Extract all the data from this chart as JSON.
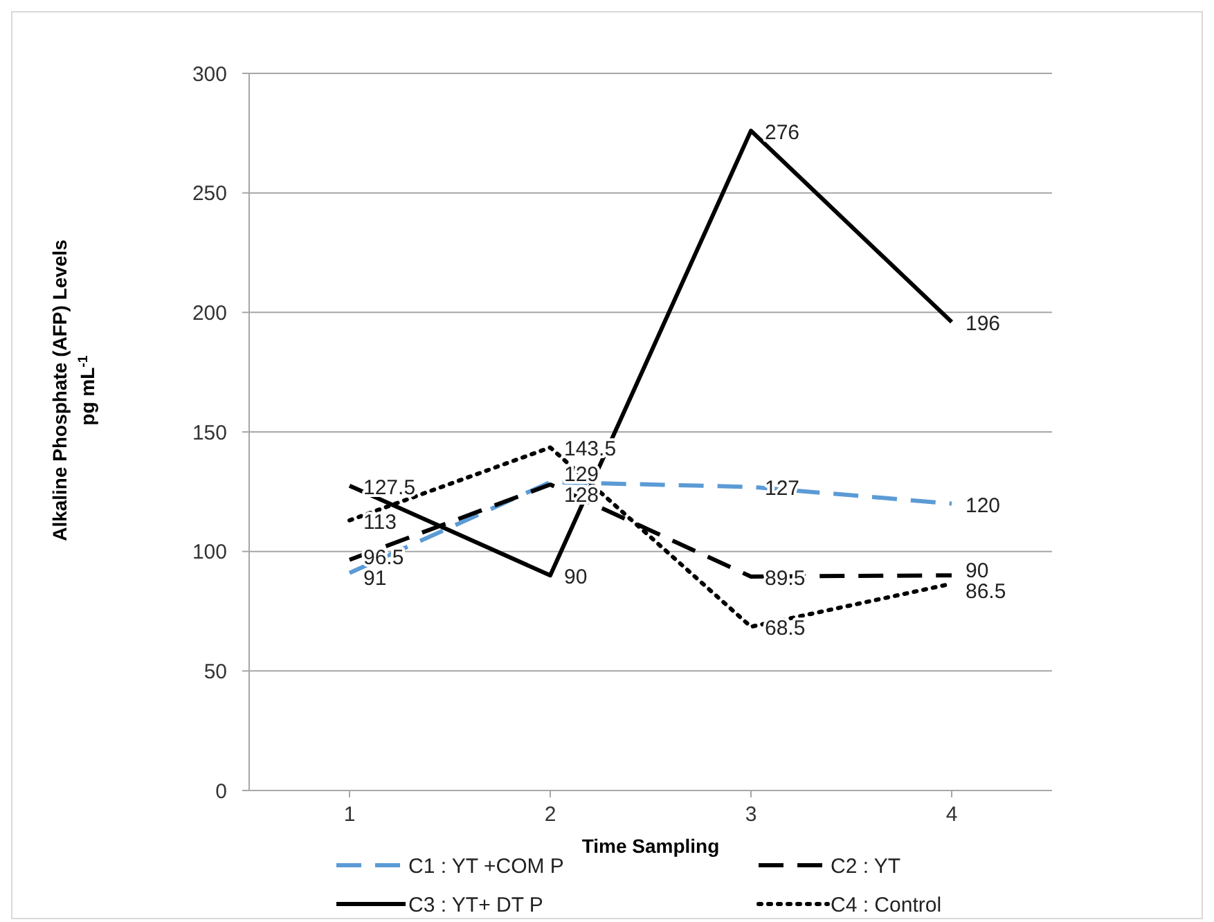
{
  "chart_data": {
    "type": "line",
    "xlabel": "Time Sampling",
    "ylabel": "Alkaline Phosphate (AFP) Levels\npg mL$^{-1}$",
    "categories": [
      "1",
      "2",
      "3",
      "4"
    ],
    "series": [
      {
        "name": "C1 : YT +COM P",
        "color": "#5b9bd5",
        "line_style": "dashed",
        "values": [
          91,
          129,
          127,
          120
        ]
      },
      {
        "name": "C2 : YT",
        "color": "#000000",
        "line_style": "dashed",
        "values": [
          96.5,
          128,
          89.5,
          90
        ]
      },
      {
        "name": "C3 : YT+ DT P",
        "color": "#000000",
        "line_style": "solid",
        "values": [
          127.5,
          90,
          276,
          196
        ]
      },
      {
        "name": "C4 : Control",
        "color": "#000000",
        "line_style": "dotted",
        "values": [
          113,
          143.5,
          68.5,
          86.5
        ]
      }
    ],
    "ylim": [
      0,
      300
    ],
    "yticks": [
      0,
      50,
      100,
      150,
      200,
      250,
      300
    ],
    "grid": "y",
    "legend": "bottom",
    "marker": "none",
    "data_labels": true
  }
}
